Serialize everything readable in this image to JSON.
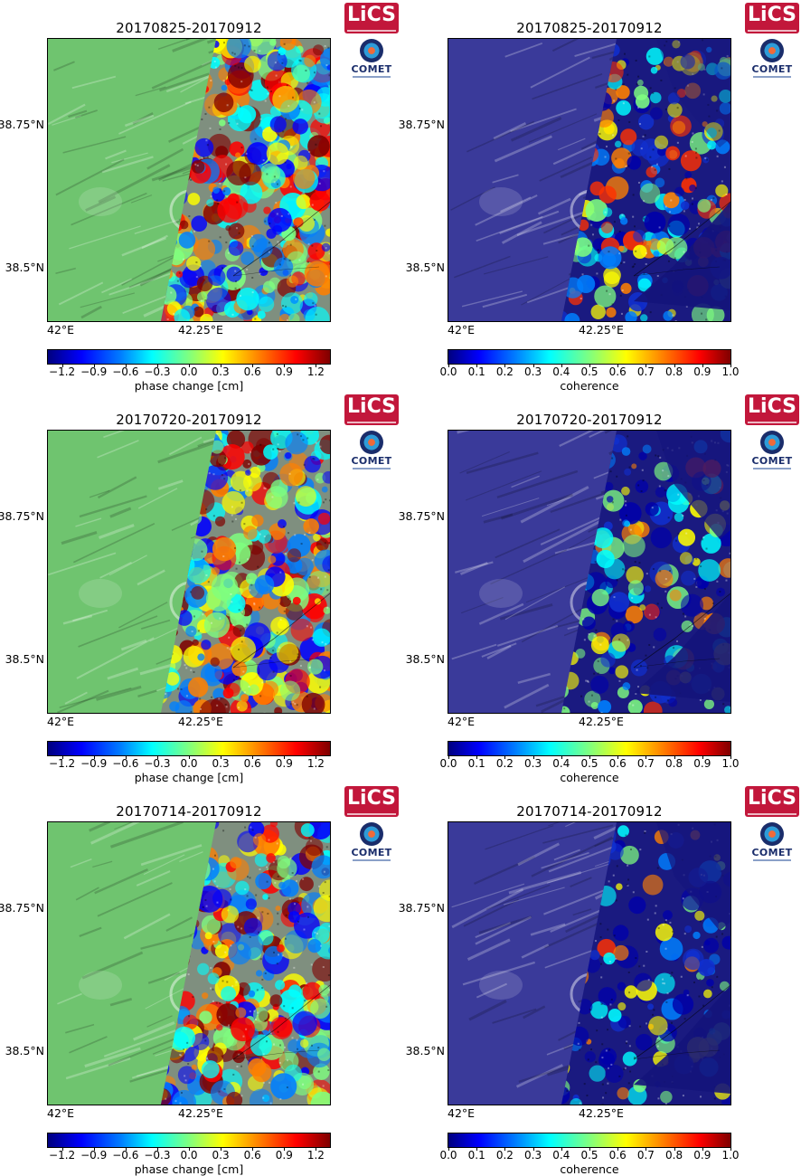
{
  "panels": [
    {
      "title": "20170825-20170912",
      "kind": "phase",
      "cb_label": "phase change [cm]",
      "ticks": [
        "−1.2",
        "−0.9",
        "−0.6",
        "−0.3",
        "0.0",
        "0.3",
        "0.6",
        "0.9",
        "1.2"
      ],
      "col": 0,
      "row": 0
    },
    {
      "title": "20170825-20170912",
      "kind": "coh",
      "cb_label": "coherence",
      "ticks": [
        "0.0",
        "0.1",
        "0.2",
        "0.3",
        "0.4",
        "0.5",
        "0.6",
        "0.7",
        "0.8",
        "0.9",
        "1.0"
      ],
      "col": 1,
      "row": 0
    },
    {
      "title": "20170720-20170912",
      "kind": "phase",
      "cb_label": "phase change [cm]",
      "ticks": [
        "−1.2",
        "−0.9",
        "−0.6",
        "−0.3",
        "0.0",
        "0.3",
        "0.6",
        "0.9",
        "1.2"
      ],
      "col": 0,
      "row": 1
    },
    {
      "title": "20170720-20170912",
      "kind": "coh",
      "cb_label": "coherence",
      "ticks": [
        "0.0",
        "0.1",
        "0.2",
        "0.3",
        "0.4",
        "0.5",
        "0.6",
        "0.7",
        "0.8",
        "0.9",
        "1.0"
      ],
      "col": 1,
      "row": 1
    },
    {
      "title": "20170714-20170912",
      "kind": "phase",
      "cb_label": "phase change [cm]",
      "ticks": [
        "−1.2",
        "−0.9",
        "−0.6",
        "−0.3",
        "0.0",
        "0.3",
        "0.6",
        "0.9",
        "1.2"
      ],
      "col": 0,
      "row": 2
    },
    {
      "title": "20170714-20170912",
      "kind": "coh",
      "cb_label": "coherence",
      "ticks": [
        "0.0",
        "0.1",
        "0.2",
        "0.3",
        "0.4",
        "0.5",
        "0.6",
        "0.7",
        "0.8",
        "0.9",
        "1.0"
      ],
      "col": 1,
      "row": 2
    }
  ],
  "axes": {
    "lat_labels": [
      "38.75°N",
      "38.5°N"
    ],
    "lon_labels": [
      "42°E",
      "42.25°E"
    ]
  },
  "logos": {
    "lics": "LiCS",
    "comet": "COMET"
  },
  "colors": {
    "phase_base": "#6fc46f",
    "coh_base": "#3a3a9a",
    "lics_brand": "#c2173b",
    "comet_brand": "#1a2d6b"
  }
}
